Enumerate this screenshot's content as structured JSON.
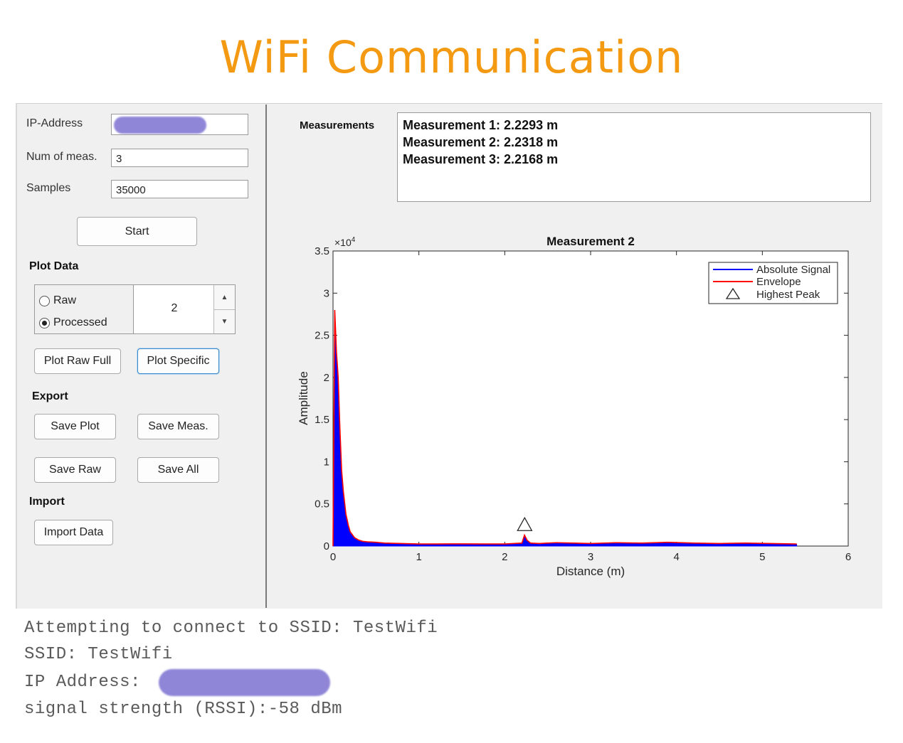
{
  "page_title": "WiFi Communication",
  "inputs": {
    "ip_label": "IP-Address",
    "num_meas_label": "Num of meas.",
    "num_meas_value": "3",
    "samples_label": "Samples",
    "samples_value": "35000"
  },
  "buttons": {
    "start": "Start",
    "plot_raw_full": "Plot Raw Full",
    "plot_specific": "Plot Specific",
    "save_plot": "Save Plot",
    "save_meas": "Save Meas.",
    "save_raw": "Save Raw",
    "save_all": "Save All",
    "import_data": "Import Data"
  },
  "sections": {
    "plot_data": "Plot Data",
    "export": "Export",
    "import": "Import",
    "measurements": "Measurements"
  },
  "plot_mode": {
    "options": [
      "Raw",
      "Processed"
    ],
    "selected": "Processed",
    "measurement_index": "2"
  },
  "measurements": [
    "Measurement 1: 2.2293 m",
    "Measurement 2: 2.2318 m",
    "Measurement 3: 2.2168 m"
  ],
  "console": {
    "line1": "Attempting to connect to SSID: TestWifi",
    "line2": "SSID: TestWifi",
    "line3": "IP Address:",
    "line4": "signal strength (RSSI):-58 dBm"
  },
  "icons": {
    "spin_up": "triangle-up-icon",
    "spin_down": "triangle-down-icon",
    "peak_marker": "triangle-outline-icon"
  },
  "colors": {
    "title": "#f39a12",
    "absolute_signal": "#0000ff",
    "envelope": "#ff0000",
    "redaction": "#8f86d8"
  },
  "chart_data": {
    "type": "area",
    "title": "Measurement 2",
    "xlabel": "Distance (m)",
    "ylabel": "Amplitude",
    "y_exponent_label": "×10",
    "y_exponent_power": "4",
    "xlim": [
      0,
      6
    ],
    "ylim": [
      0,
      35000
    ],
    "x_ticks": [
      0,
      1,
      2,
      3,
      4,
      5,
      6
    ],
    "x_tick_labels": [
      "0",
      "1",
      "2",
      "3",
      "4",
      "5",
      "6"
    ],
    "y_ticks": [
      0,
      5000,
      10000,
      15000,
      20000,
      25000,
      30000,
      35000
    ],
    "y_tick_labels": [
      "0",
      "0.5",
      "1",
      "1.5",
      "2",
      "2.5",
      "3",
      "3.5"
    ],
    "legend_placement": "top-right",
    "legend": [
      "Absolute Signal",
      "Envelope",
      "Highest Peak"
    ],
    "series": [
      {
        "name": "Absolute Signal",
        "x": [
          0,
          0.02,
          0.04,
          0.06,
          0.08,
          0.1,
          0.12,
          0.15,
          0.18,
          0.2,
          0.25,
          0.3,
          0.35,
          0.4,
          0.5,
          0.6,
          0.8,
          1.0,
          1.2,
          1.5,
          1.8,
          2.0,
          2.1,
          2.2,
          2.23,
          2.26,
          2.3,
          2.4,
          2.6,
          2.8,
          3.0,
          3.3,
          3.6,
          3.9,
          4.2,
          4.5,
          4.8,
          5.1,
          5.4
        ],
        "y": [
          0,
          26500,
          22000,
          18000,
          12000,
          8000,
          6000,
          3500,
          2200,
          1500,
          900,
          600,
          500,
          450,
          400,
          300,
          250,
          200,
          200,
          220,
          200,
          200,
          250,
          300,
          1200,
          600,
          300,
          250,
          350,
          300,
          250,
          350,
          300,
          400,
          300,
          250,
          300,
          250,
          200
        ]
      },
      {
        "name": "Envelope",
        "x": [
          0,
          0.02,
          0.04,
          0.06,
          0.08,
          0.1,
          0.12,
          0.15,
          0.18,
          0.2,
          0.25,
          0.3,
          0.35,
          0.4,
          0.5,
          0.6,
          0.8,
          1.0,
          1.2,
          1.5,
          1.8,
          2.0,
          2.1,
          2.2,
          2.23,
          2.26,
          2.3,
          2.4,
          2.6,
          2.8,
          3.0,
          3.3,
          3.6,
          3.9,
          4.2,
          4.5,
          4.8,
          5.1,
          5.4
        ],
        "y": [
          0,
          28000,
          23000,
          20000,
          14000,
          9000,
          6500,
          3800,
          2400,
          1700,
          1000,
          700,
          550,
          500,
          450,
          350,
          300,
          250,
          250,
          260,
          250,
          250,
          300,
          350,
          1300,
          700,
          350,
          300,
          400,
          350,
          300,
          400,
          350,
          450,
          350,
          300,
          350,
          300,
          250
        ]
      }
    ],
    "highest_peak": {
      "x": 2.2318,
      "y": 1500
    }
  }
}
